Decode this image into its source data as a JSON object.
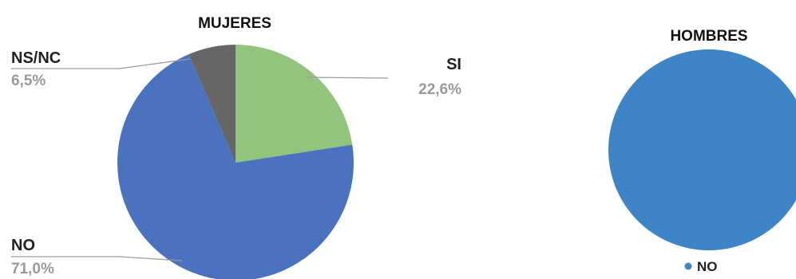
{
  "chart_data": [
    {
      "type": "pie",
      "title": "MUJERES",
      "slices": [
        {
          "label": "SI",
          "value_label": "22,6%",
          "value": 22.6,
          "color": "#93c47d"
        },
        {
          "label": "NO",
          "value_label": "71,0%",
          "value": 71.0,
          "color": "#4a72bf"
        },
        {
          "label": "NS/NC",
          "value_label": "6,5%",
          "value": 6.5,
          "color": "#666666"
        }
      ],
      "start_angle_deg": 0,
      "direction": "clockwise"
    },
    {
      "type": "pie",
      "title": "HOMBRES",
      "slices": [
        {
          "label": "NO",
          "value": 100,
          "color": "#3d85c6"
        }
      ],
      "legend": {
        "position": "bottom",
        "entries": [
          "NO"
        ]
      }
    }
  ]
}
